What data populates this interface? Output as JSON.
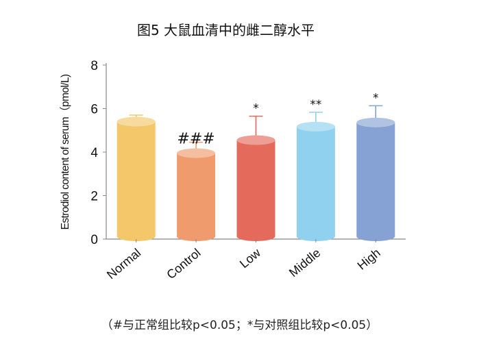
{
  "chart_data": {
    "type": "bar",
    "title": "图5 大鼠血清中的雌二醇水平",
    "xlabel": "",
    "ylabel": "Estrodiol content of serum（pmol/L)",
    "ylim": [
      0,
      8
    ],
    "yticks": [
      "0",
      "2",
      "4",
      "6",
      "8"
    ],
    "categories": [
      "Normal",
      "Control",
      "Low",
      "Middle",
      "High"
    ],
    "values": [
      5.4,
      3.95,
      4.55,
      5.17,
      5.36
    ],
    "error_upper": [
      5.7,
      4.45,
      5.65,
      5.83,
      6.13
    ],
    "annotations": [
      "",
      "###",
      "*",
      "**",
      "*"
    ],
    "colors": [
      "#F3C76A",
      "#EF9B6D",
      "#E46B5C",
      "#8FD1EE",
      "#86A2D4"
    ],
    "grid": false,
    "footnote": "（#与正常组比较p<0.05；*与对照组比较p<0.05）"
  }
}
